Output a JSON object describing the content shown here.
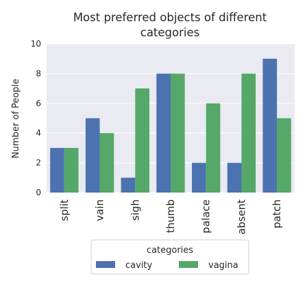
{
  "chart_data": {
    "type": "bar",
    "title_lines": [
      "Most preferred objects of different",
      "categories"
    ],
    "xlabel": "",
    "ylabel": "Number of People",
    "ylim": [
      0,
      10
    ],
    "yticks": [
      0,
      2,
      4,
      6,
      8,
      10
    ],
    "grid": true,
    "categories": [
      "split",
      "vain",
      "sigh",
      "thumb",
      "palace",
      "absent",
      "patch"
    ],
    "series": [
      {
        "name": "cavity",
        "color": "#4c72b0",
        "values": [
          3,
          5,
          1,
          8,
          2,
          2,
          9
        ]
      },
      {
        "name": "vagina",
        "color": "#55a868",
        "values": [
          3,
          4,
          7,
          8,
          6,
          8,
          5
        ]
      }
    ],
    "legend": {
      "title": "categories",
      "placement": "bottom-center"
    }
  }
}
